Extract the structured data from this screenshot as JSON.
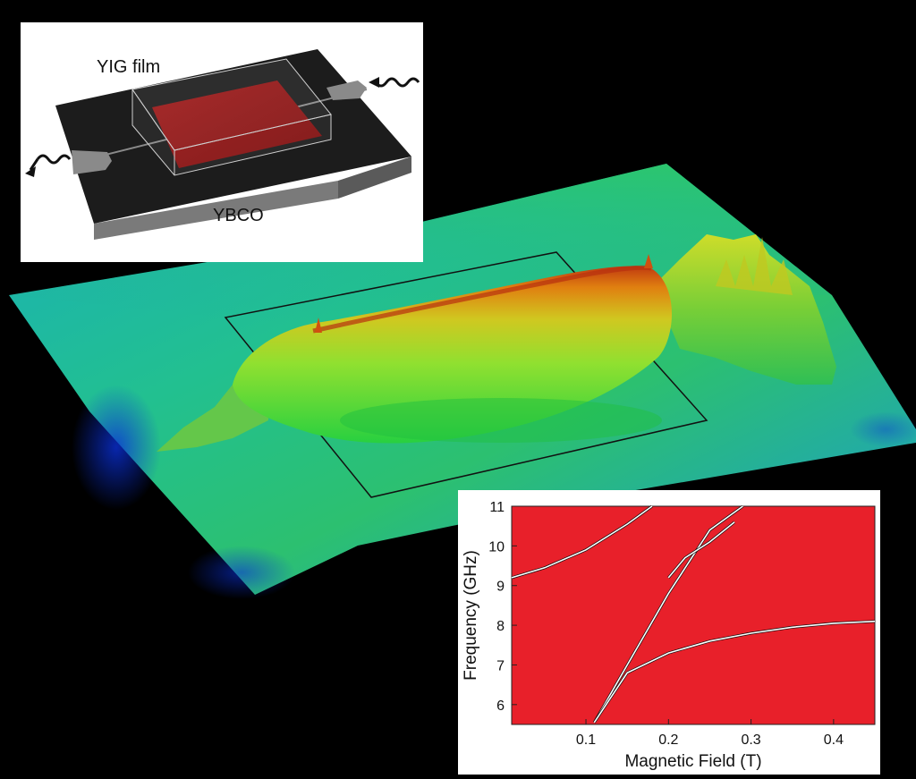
{
  "inset_device": {
    "label_top": "YIG film",
    "label_bottom": "YBCO"
  },
  "surface_plot": {
    "colormap": [
      "#0a2fd0",
      "#1a8fd0",
      "#18c0a0",
      "#30d040",
      "#c0d020",
      "#e08010",
      "#b03010"
    ]
  },
  "spectrum": {
    "background_color": "#e8202a",
    "xlabel": "Magnetic Field (T)",
    "ylabel": "Frequency (GHz)",
    "xlim": [
      0.01,
      0.45
    ],
    "ylim": [
      5.5,
      11
    ],
    "x_ticks": [
      "0.1",
      "0.2",
      "0.3",
      "0.4"
    ],
    "x_tick_values": [
      0.1,
      0.2,
      0.3,
      0.4
    ],
    "y_ticks": [
      "6",
      "7",
      "8",
      "9",
      "10",
      "11"
    ],
    "y_tick_values": [
      6,
      7,
      8,
      9,
      10,
      11
    ],
    "lines": [
      {
        "x": [
          0.01,
          0.05,
          0.1,
          0.15,
          0.18
        ],
        "y": [
          9.2,
          9.45,
          9.9,
          10.55,
          11.0
        ]
      },
      {
        "x": [
          0.11,
          0.15,
          0.2,
          0.25,
          0.29
        ],
        "y": [
          5.55,
          7.0,
          8.8,
          10.4,
          11.0
        ]
      },
      {
        "x": [
          0.11,
          0.15,
          0.2,
          0.25,
          0.3,
          0.35,
          0.4,
          0.45
        ],
        "y": [
          5.55,
          6.8,
          7.3,
          7.6,
          7.8,
          7.95,
          8.05,
          8.1
        ]
      },
      {
        "x": [
          0.2,
          0.22,
          0.25,
          0.28
        ],
        "y": [
          9.2,
          9.7,
          10.1,
          10.6
        ]
      }
    ]
  }
}
